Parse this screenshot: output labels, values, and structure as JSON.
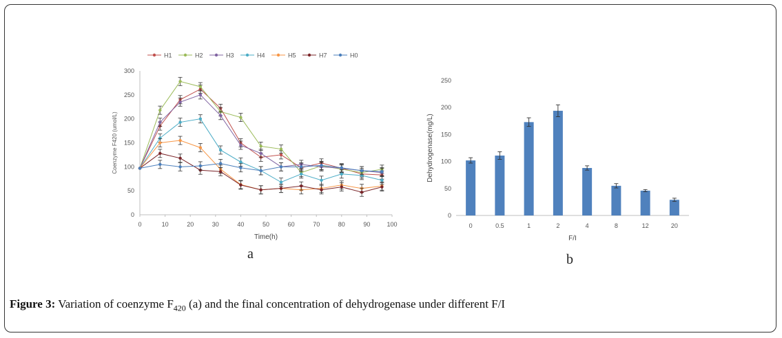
{
  "caption": {
    "label": "Figure 3:",
    "text_before": " Variation of coenzyme F",
    "subscript": "420",
    "text_after": " (a) and the final concentration of dehydrogenase under different F/I"
  },
  "panel_a_label": "a",
  "panel_b_label": "b",
  "chart_data": [
    {
      "type": "line",
      "title": "",
      "xlabel": "Time(h)",
      "ylabel": "Coenzyme F420 (umol/L)",
      "xlim": [
        0,
        100
      ],
      "ylim": [
        0,
        300
      ],
      "xticks": [
        0,
        10,
        20,
        30,
        40,
        50,
        60,
        70,
        80,
        90,
        100
      ],
      "yticks": [
        0,
        50,
        100,
        150,
        200,
        250,
        300
      ],
      "legend_position": "top",
      "x": [
        0,
        8,
        16,
        24,
        32,
        40,
        48,
        56,
        64,
        72,
        80,
        88,
        96
      ],
      "series": [
        {
          "name": "H1",
          "color": "#c0504d",
          "values": [
            97,
            185,
            240,
            262,
            222,
            150,
            120,
            125,
            98,
            108,
            97,
            85,
            83
          ]
        },
        {
          "name": "H2",
          "color": "#9bbb59",
          "values": [
            97,
            218,
            278,
            267,
            215,
            203,
            143,
            137,
            88,
            102,
            95,
            88,
            95
          ]
        },
        {
          "name": "H3",
          "color": "#8064a2",
          "values": [
            97,
            193,
            235,
            250,
            207,
            145,
            128,
            100,
            105,
            100,
            97,
            92,
            88
          ]
        },
        {
          "name": "H4",
          "color": "#4bacc6",
          "values": [
            97,
            160,
            193,
            200,
            135,
            110,
            92,
            68,
            85,
            72,
            85,
            82,
            72
          ]
        },
        {
          "name": "H5",
          "color": "#f79646",
          "values": [
            97,
            150,
            155,
            140,
            95,
            63,
            52,
            55,
            52,
            55,
            62,
            55,
            60
          ]
        },
        {
          "name": "H7",
          "color": "#7a2428",
          "values": [
            97,
            128,
            118,
            93,
            90,
            62,
            52,
            55,
            60,
            52,
            58,
            47,
            58
          ]
        },
        {
          "name": "H0",
          "color": "#4a7ebb",
          "values": [
            97,
            105,
            100,
            102,
            107,
            98,
            92,
            100,
            100,
            103,
            98,
            92,
            90
          ]
        }
      ]
    },
    {
      "type": "bar",
      "title": "",
      "xlabel": "F/I",
      "ylabel": "Dehydrogenase(mg/L)",
      "ylim": [
        0,
        250
      ],
      "yticks": [
        0,
        50,
        100,
        150,
        200,
        250
      ],
      "color": "#4f81bd",
      "categories": [
        "0",
        "0.5",
        "1",
        "2",
        "4",
        "8",
        "12",
        "20"
      ],
      "values": [
        102,
        111,
        173,
        194,
        88,
        55,
        46,
        29
      ],
      "errors": [
        5,
        7,
        8,
        11,
        4,
        4,
        2,
        3
      ]
    }
  ]
}
